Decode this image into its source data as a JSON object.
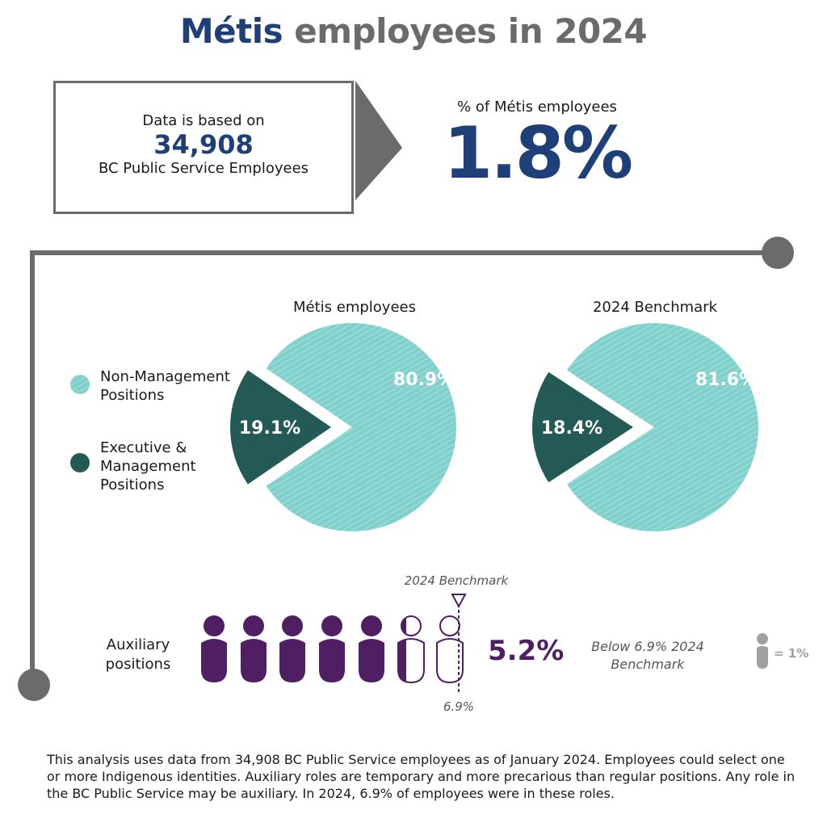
{
  "title": {
    "accent": "Métis",
    "rest": "employees in 2024"
  },
  "data_box": {
    "line1": "Data is based on",
    "number": "34,908",
    "line3": "BC Public Service Employees"
  },
  "percent": {
    "label": "% of Métis employees",
    "value": "1.8%"
  },
  "legend": {
    "non_mgmt": "Non-Management Positions",
    "exec_mgmt": "Executive & Management Positions"
  },
  "colors": {
    "teal": "#7fcfcb",
    "dark_teal": "#235a55",
    "navy": "#1f3f78",
    "grey": "#6b6b6e",
    "purple": "#4f1e63",
    "key_grey": "#a0a0a3"
  },
  "chart_data": [
    {
      "type": "pie",
      "title": "Métis employees",
      "slices": [
        {
          "label": "Non-Management Positions",
          "value": 80.9,
          "display": "80.9%"
        },
        {
          "label": "Executive & Management Positions",
          "value": 19.1,
          "display": "19.1%"
        }
      ]
    },
    {
      "type": "pie",
      "title": "2024 Benchmark",
      "slices": [
        {
          "label": "Non-Management Positions",
          "value": 81.6,
          "display": "81.6%"
        },
        {
          "label": "Executive & Management Positions",
          "value": 18.4,
          "display": "18.4%"
        }
      ]
    },
    {
      "type": "pictogram",
      "label": "Auxiliary positions",
      "value": 5.2,
      "display": "5.2%",
      "unit_per_icon": 1,
      "benchmark": 6.9,
      "benchmark_label": "2024 Benchmark",
      "benchmark_value_label": "6.9%",
      "note": "Below 6.9% 2024 Benchmark",
      "key": "= 1%"
    }
  ],
  "footnote": "This analysis uses data from 34,908 BC Public Service employees as of January 2024.  Employees could select one or more Indigenous identities. Auxiliary roles are temporary and more precarious than regular positions. Any role in the BC Public Service may be auxiliary. In 2024, 6.9% of employees were in these roles."
}
